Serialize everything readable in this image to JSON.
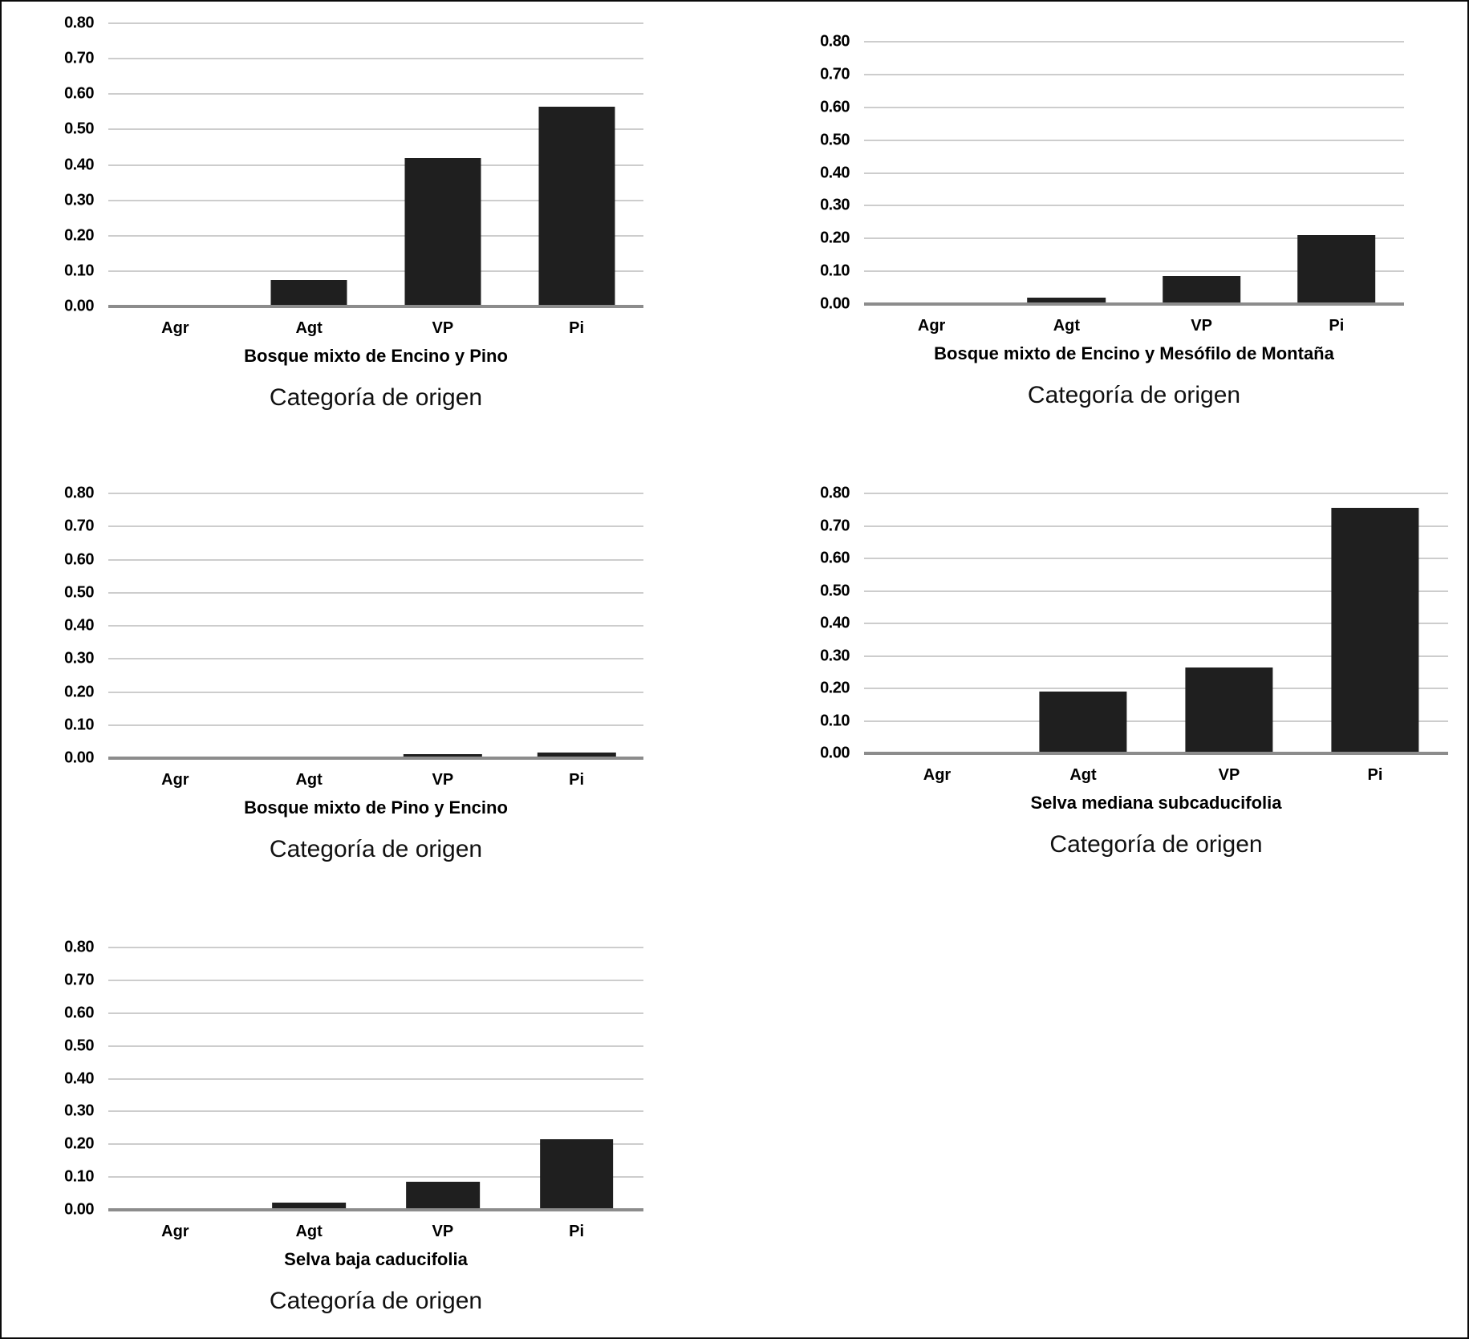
{
  "figure": {
    "axis_title": "Categoría de origen",
    "categories": [
      "Agr",
      "Agt",
      "VP",
      "Pi"
    ]
  },
  "colors": {
    "bar": "#1f1f1f",
    "gridline": "#cdcdcd",
    "axis_line": "#8c8c8c",
    "text": "#000000",
    "background": "#ffffff",
    "frame": "#0a0a0a"
  },
  "chart_data": [
    {
      "type": "bar",
      "subtitle": "Bosque mixto de Encino y Pino",
      "xlabel": "Categoría de origen",
      "ylabel": "",
      "categories": [
        "Agr",
        "Agt",
        "VP",
        "Pi"
      ],
      "values": [
        0.005,
        0.075,
        0.42,
        0.565
      ],
      "ylim": [
        0,
        0.8
      ],
      "ytick_step": 0.1,
      "yticks": [
        "0.80",
        "0.70",
        "0.60",
        "0.50",
        "0.40",
        "0.30",
        "0.20",
        "0.10",
        "0.00"
      ],
      "grid": true,
      "legend": false
    },
    {
      "type": "bar",
      "subtitle": "Bosque mixto de Encino y Mesófilo de Montaña",
      "xlabel": "Categoría de origen",
      "ylabel": "",
      "categories": [
        "Agr",
        "Agt",
        "VP",
        "Pi"
      ],
      "values": [
        0,
        0.02,
        0.085,
        0.21
      ],
      "ylim": [
        0,
        0.8
      ],
      "ytick_step": 0.1,
      "yticks": [
        "0.80",
        "0.70",
        "0.60",
        "0.50",
        "0.40",
        "0.30",
        "0.20",
        "0.10",
        "0.00"
      ],
      "grid": true,
      "legend": false
    },
    {
      "type": "bar",
      "subtitle": "Bosque mixto de Pino y Encino",
      "xlabel": "Categoría de origen",
      "ylabel": "",
      "categories": [
        "Agr",
        "Agt",
        "VP",
        "Pi"
      ],
      "values": [
        0,
        0,
        0.012,
        0.016
      ],
      "ylim": [
        0,
        0.8
      ],
      "ytick_step": 0.1,
      "yticks": [
        "0.80",
        "0.70",
        "0.60",
        "0.50",
        "0.40",
        "0.30",
        "0.20",
        "0.10",
        "0.00"
      ],
      "grid": true,
      "legend": false
    },
    {
      "type": "bar",
      "subtitle": "Selva mediana subcaducifolia",
      "xlabel": "Categoría de origen",
      "ylabel": "",
      "categories": [
        "Agr",
        "Agt",
        "VP",
        "Pi"
      ],
      "values": [
        0,
        0.19,
        0.265,
        0.755
      ],
      "ylim": [
        0,
        0.8
      ],
      "ytick_step": 0.1,
      "yticks": [
        "0.80",
        "0.70",
        "0.60",
        "0.50",
        "0.40",
        "0.30",
        "0.20",
        "0.10",
        "0.00"
      ],
      "grid": true,
      "legend": false
    },
    {
      "type": "bar",
      "subtitle": "Selva baja caducifolia",
      "xlabel": "Categoría de origen",
      "ylabel": "",
      "categories": [
        "Agr",
        "Agt",
        "VP",
        "Pi"
      ],
      "values": [
        0,
        0.022,
        0.085,
        0.215
      ],
      "ylim": [
        0,
        0.8
      ],
      "ytick_step": 0.1,
      "yticks": [
        "0.80",
        "0.70",
        "0.60",
        "0.50",
        "0.40",
        "0.30",
        "0.20",
        "0.10",
        "0.00"
      ],
      "grid": true,
      "legend": false
    }
  ]
}
